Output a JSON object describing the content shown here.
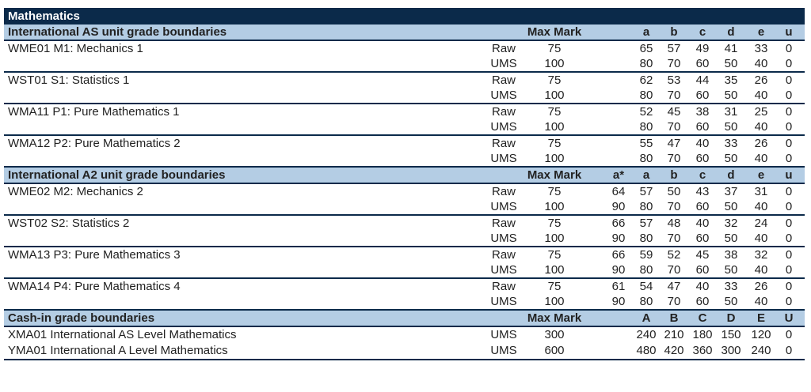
{
  "title": "Mathematics",
  "as_section": {
    "heading": "International AS unit grade boundaries",
    "max_label": "Max Mark",
    "grades": [
      "",
      "a",
      "b",
      "c",
      "d",
      "e",
      "u"
    ],
    "units": [
      {
        "name": "WME01  M1: Mechanics 1",
        "rows": [
          {
            "type": "Raw",
            "max": "75",
            "vals": [
              "",
              "65",
              "57",
              "49",
              "41",
              "33",
              "0"
            ]
          },
          {
            "type": "UMS",
            "max": "100",
            "vals": [
              "",
              "80",
              "70",
              "60",
              "50",
              "40",
              "0"
            ]
          }
        ]
      },
      {
        "name": "WST01  S1: Statistics 1",
        "rows": [
          {
            "type": "Raw",
            "max": "75",
            "vals": [
              "",
              "62",
              "53",
              "44",
              "35",
              "26",
              "0"
            ]
          },
          {
            "type": "UMS",
            "max": "100",
            "vals": [
              "",
              "80",
              "70",
              "60",
              "50",
              "40",
              "0"
            ]
          }
        ]
      },
      {
        "name": "WMA11  P1: Pure Mathematics 1",
        "rows": [
          {
            "type": "Raw",
            "max": "75",
            "vals": [
              "",
              "52",
              "45",
              "38",
              "31",
              "25",
              "0"
            ]
          },
          {
            "type": "UMS",
            "max": "100",
            "vals": [
              "",
              "80",
              "70",
              "60",
              "50",
              "40",
              "0"
            ]
          }
        ]
      },
      {
        "name": "WMA12  P2: Pure Mathematics 2",
        "rows": [
          {
            "type": "Raw",
            "max": "75",
            "vals": [
              "",
              "55",
              "47",
              "40",
              "33",
              "26",
              "0"
            ]
          },
          {
            "type": "UMS",
            "max": "100",
            "vals": [
              "",
              "80",
              "70",
              "60",
              "50",
              "40",
              "0"
            ]
          }
        ]
      }
    ]
  },
  "a2_section": {
    "heading": "International A2 unit grade boundaries",
    "max_label": "Max Mark",
    "grades": [
      "a*",
      "a",
      "b",
      "c",
      "d",
      "e",
      "u"
    ],
    "units": [
      {
        "name": "WME02  M2: Mechanics 2",
        "rows": [
          {
            "type": "Raw",
            "max": "75",
            "vals": [
              "64",
              "57",
              "50",
              "43",
              "37",
              "31",
              "0"
            ]
          },
          {
            "type": "UMS",
            "max": "100",
            "vals": [
              "90",
              "80",
              "70",
              "60",
              "50",
              "40",
              "0"
            ]
          }
        ]
      },
      {
        "name": "WST02  S2: Statistics 2",
        "rows": [
          {
            "type": "Raw",
            "max": "75",
            "vals": [
              "66",
              "57",
              "48",
              "40",
              "32",
              "24",
              "0"
            ]
          },
          {
            "type": "UMS",
            "max": "100",
            "vals": [
              "90",
              "80",
              "70",
              "60",
              "50",
              "40",
              "0"
            ]
          }
        ]
      },
      {
        "name": "WMA13  P3: Pure Mathematics 3",
        "rows": [
          {
            "type": "Raw",
            "max": "75",
            "vals": [
              "66",
              "59",
              "52",
              "45",
              "38",
              "32",
              "0"
            ]
          },
          {
            "type": "UMS",
            "max": "100",
            "vals": [
              "90",
              "80",
              "70",
              "60",
              "50",
              "40",
              "0"
            ]
          }
        ]
      },
      {
        "name": "WMA14  P4: Pure Mathematics 4",
        "rows": [
          {
            "type": "Raw",
            "max": "75",
            "vals": [
              "61",
              "54",
              "47",
              "40",
              "33",
              "26",
              "0"
            ]
          },
          {
            "type": "UMS",
            "max": "100",
            "vals": [
              "90",
              "80",
              "70",
              "60",
              "50",
              "40",
              "0"
            ]
          }
        ]
      }
    ]
  },
  "cash_section": {
    "heading": "Cash-in grade boundaries",
    "max_label": "Max Mark",
    "grades": [
      "A",
      "B",
      "C",
      "D",
      "E",
      "U"
    ],
    "rows": [
      {
        "name": "XMA01   International AS Level Mathematics",
        "type": "UMS",
        "max": "300",
        "vals": [
          "240",
          "210",
          "180",
          "150",
          "120",
          "0"
        ]
      },
      {
        "name": "YMA01   International A Level Mathematics",
        "type": "UMS",
        "max": "600",
        "vals": [
          "480",
          "420",
          "360",
          "300",
          "240",
          "0"
        ]
      }
    ]
  },
  "colors": {
    "header_dark": "#0b2a4a",
    "section_band": "#b4cde4"
  }
}
